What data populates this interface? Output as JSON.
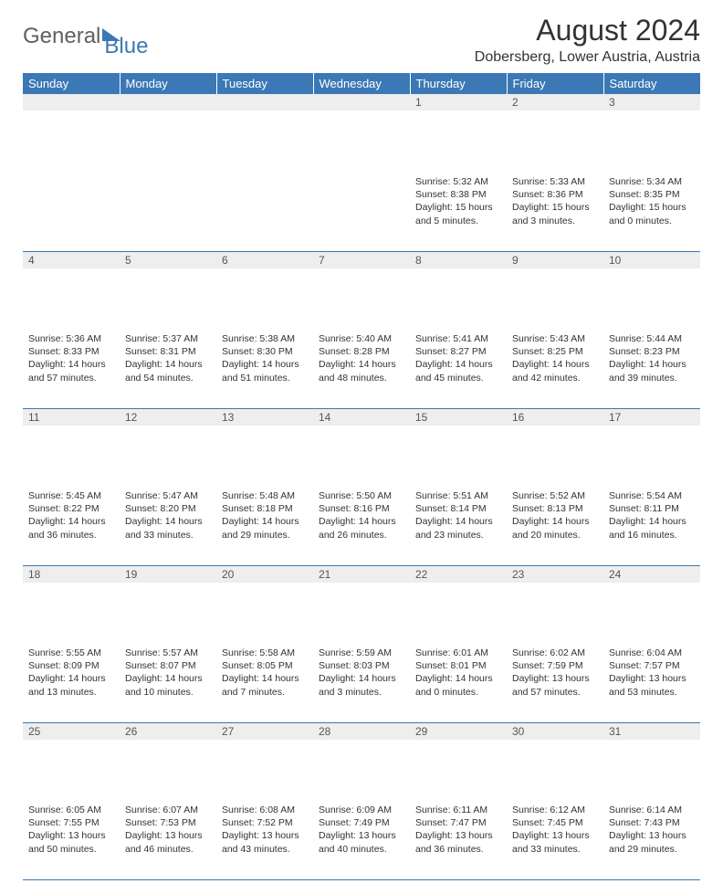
{
  "brand": {
    "part1": "General",
    "part2": "Blue"
  },
  "title": "August 2024",
  "location": "Dobersberg, Lower Austria, Austria",
  "colors": {
    "header_bg": "#3b78b5",
    "header_text": "#ffffff",
    "daynum_bg": "#eeeeee",
    "rule": "#3b78b5",
    "text": "#333333"
  },
  "layout": {
    "weeks": 5,
    "cols": 7,
    "first_day_col": 4
  },
  "weekdays": [
    "Sunday",
    "Monday",
    "Tuesday",
    "Wednesday",
    "Thursday",
    "Friday",
    "Saturday"
  ],
  "days": [
    {
      "n": 1,
      "sr": "5:32 AM",
      "ss": "8:38 PM",
      "dl": "15 hours and 5 minutes."
    },
    {
      "n": 2,
      "sr": "5:33 AM",
      "ss": "8:36 PM",
      "dl": "15 hours and 3 minutes."
    },
    {
      "n": 3,
      "sr": "5:34 AM",
      "ss": "8:35 PM",
      "dl": "15 hours and 0 minutes."
    },
    {
      "n": 4,
      "sr": "5:36 AM",
      "ss": "8:33 PM",
      "dl": "14 hours and 57 minutes."
    },
    {
      "n": 5,
      "sr": "5:37 AM",
      "ss": "8:31 PM",
      "dl": "14 hours and 54 minutes."
    },
    {
      "n": 6,
      "sr": "5:38 AM",
      "ss": "8:30 PM",
      "dl": "14 hours and 51 minutes."
    },
    {
      "n": 7,
      "sr": "5:40 AM",
      "ss": "8:28 PM",
      "dl": "14 hours and 48 minutes."
    },
    {
      "n": 8,
      "sr": "5:41 AM",
      "ss": "8:27 PM",
      "dl": "14 hours and 45 minutes."
    },
    {
      "n": 9,
      "sr": "5:43 AM",
      "ss": "8:25 PM",
      "dl": "14 hours and 42 minutes."
    },
    {
      "n": 10,
      "sr": "5:44 AM",
      "ss": "8:23 PM",
      "dl": "14 hours and 39 minutes."
    },
    {
      "n": 11,
      "sr": "5:45 AM",
      "ss": "8:22 PM",
      "dl": "14 hours and 36 minutes."
    },
    {
      "n": 12,
      "sr": "5:47 AM",
      "ss": "8:20 PM",
      "dl": "14 hours and 33 minutes."
    },
    {
      "n": 13,
      "sr": "5:48 AM",
      "ss": "8:18 PM",
      "dl": "14 hours and 29 minutes."
    },
    {
      "n": 14,
      "sr": "5:50 AM",
      "ss": "8:16 PM",
      "dl": "14 hours and 26 minutes."
    },
    {
      "n": 15,
      "sr": "5:51 AM",
      "ss": "8:14 PM",
      "dl": "14 hours and 23 minutes."
    },
    {
      "n": 16,
      "sr": "5:52 AM",
      "ss": "8:13 PM",
      "dl": "14 hours and 20 minutes."
    },
    {
      "n": 17,
      "sr": "5:54 AM",
      "ss": "8:11 PM",
      "dl": "14 hours and 16 minutes."
    },
    {
      "n": 18,
      "sr": "5:55 AM",
      "ss": "8:09 PM",
      "dl": "14 hours and 13 minutes."
    },
    {
      "n": 19,
      "sr": "5:57 AM",
      "ss": "8:07 PM",
      "dl": "14 hours and 10 minutes."
    },
    {
      "n": 20,
      "sr": "5:58 AM",
      "ss": "8:05 PM",
      "dl": "14 hours and 7 minutes."
    },
    {
      "n": 21,
      "sr": "5:59 AM",
      "ss": "8:03 PM",
      "dl": "14 hours and 3 minutes."
    },
    {
      "n": 22,
      "sr": "6:01 AM",
      "ss": "8:01 PM",
      "dl": "14 hours and 0 minutes."
    },
    {
      "n": 23,
      "sr": "6:02 AM",
      "ss": "7:59 PM",
      "dl": "13 hours and 57 minutes."
    },
    {
      "n": 24,
      "sr": "6:04 AM",
      "ss": "7:57 PM",
      "dl": "13 hours and 53 minutes."
    },
    {
      "n": 25,
      "sr": "6:05 AM",
      "ss": "7:55 PM",
      "dl": "13 hours and 50 minutes."
    },
    {
      "n": 26,
      "sr": "6:07 AM",
      "ss": "7:53 PM",
      "dl": "13 hours and 46 minutes."
    },
    {
      "n": 27,
      "sr": "6:08 AM",
      "ss": "7:52 PM",
      "dl": "13 hours and 43 minutes."
    },
    {
      "n": 28,
      "sr": "6:09 AM",
      "ss": "7:49 PM",
      "dl": "13 hours and 40 minutes."
    },
    {
      "n": 29,
      "sr": "6:11 AM",
      "ss": "7:47 PM",
      "dl": "13 hours and 36 minutes."
    },
    {
      "n": 30,
      "sr": "6:12 AM",
      "ss": "7:45 PM",
      "dl": "13 hours and 33 minutes."
    },
    {
      "n": 31,
      "sr": "6:14 AM",
      "ss": "7:43 PM",
      "dl": "13 hours and 29 minutes."
    }
  ],
  "labels": {
    "sunrise": "Sunrise:",
    "sunset": "Sunset:",
    "daylight": "Daylight:"
  }
}
